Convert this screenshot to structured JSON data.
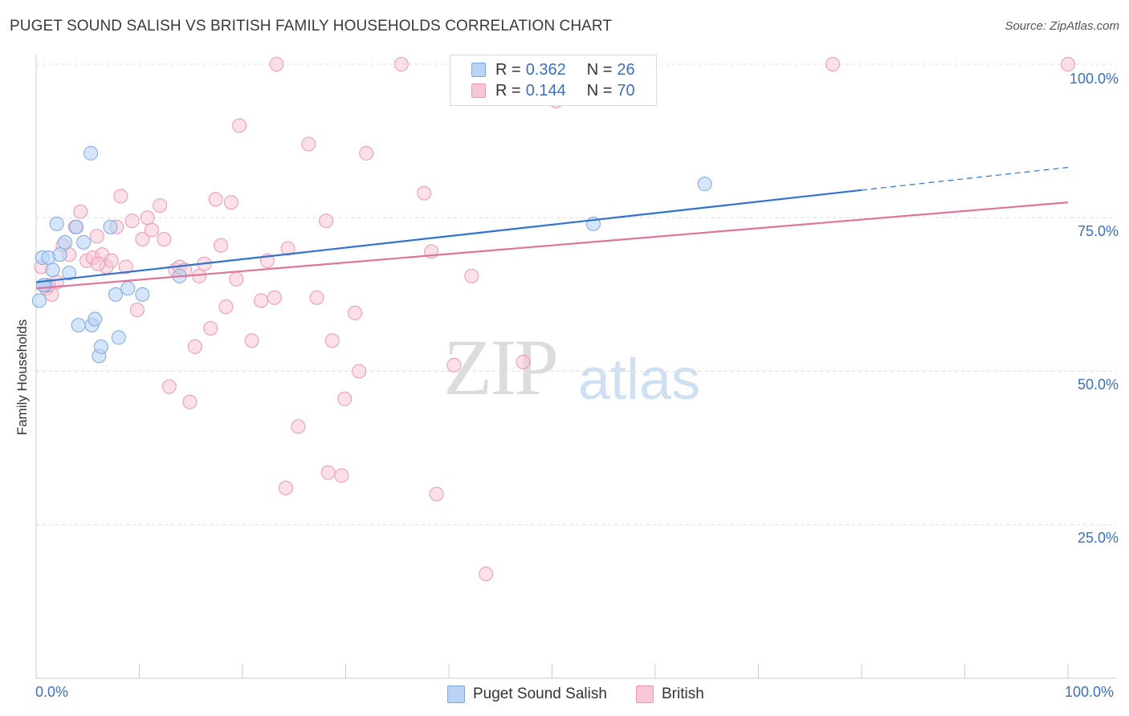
{
  "title": "PUGET SOUND SALISH VS BRITISH FAMILY HOUSEHOLDS CORRELATION CHART",
  "source": "Source: ZipAtlas.com",
  "watermark": {
    "part1": "ZIP",
    "part2": "atlas"
  },
  "legend_top": {
    "rows": [
      {
        "r_label": "R = ",
        "r_value": "0.362",
        "n_label": "N = ",
        "n_value": "26"
      },
      {
        "r_label": "R = ",
        "r_value": "0.144",
        "n_label": "N = ",
        "n_value": "70"
      }
    ]
  },
  "chart_data": {
    "type": "scatter",
    "title": "PUGET SOUND SALISH VS BRITISH FAMILY HOUSEHOLDS CORRELATION CHART",
    "xlabel": "",
    "ylabel": "Family Households",
    "xlim": [
      0,
      100
    ],
    "ylim": [
      0,
      100
    ],
    "x_tick_labels": [
      "0.0%",
      "100.0%"
    ],
    "y_ticks": [
      {
        "value": 100,
        "label": "100.0%"
      },
      {
        "value": 75,
        "label": "75.0%"
      },
      {
        "value": 50,
        "label": "50.0%"
      },
      {
        "value": 25,
        "label": "25.0%"
      }
    ],
    "grid": true,
    "colors": {
      "blue_fill": "#b9d3f6",
      "blue_stroke": "#7ea9e1",
      "blue_line": "#2f72d0",
      "pink_fill": "#f8c7d6",
      "pink_stroke": "#e89ab2",
      "pink_line": "#e0749a",
      "accent_text": "#3a6fc4"
    },
    "series": [
      {
        "name": "Puget Sound Salish",
        "R": 0.362,
        "N": 26,
        "trend": {
          "x0": 0,
          "y0": 64.5,
          "x1": 80,
          "y1": 79.5,
          "dash_to_x": 100,
          "dash_to_y": 83.2
        },
        "points": [
          [
            0.3,
            61.5
          ],
          [
            0.6,
            68.5
          ],
          [
            0.9,
            64
          ],
          [
            1.2,
            68.5
          ],
          [
            1.6,
            66.5
          ],
          [
            2.0,
            74
          ],
          [
            2.3,
            69
          ],
          [
            2.8,
            71
          ],
          [
            3.2,
            66
          ],
          [
            3.9,
            73.5
          ],
          [
            4.1,
            57.5
          ],
          [
            4.6,
            71
          ],
          [
            5.3,
            85.5
          ],
          [
            5.4,
            57.5
          ],
          [
            5.7,
            58.5
          ],
          [
            6.1,
            52.5
          ],
          [
            6.3,
            54
          ],
          [
            7.2,
            73.5
          ],
          [
            7.7,
            62.5
          ],
          [
            8.0,
            55.5
          ],
          [
            8.9,
            63.5
          ],
          [
            10.3,
            62.5
          ],
          [
            13.9,
            65.5
          ],
          [
            0.7,
            64
          ],
          [
            54.0,
            74
          ],
          [
            64.8,
            80.5
          ]
        ]
      },
      {
        "name": "British",
        "R": 0.144,
        "N": 70,
        "trend": {
          "x0": 0,
          "y0": 63.5,
          "x1": 100,
          "y1": 77.5
        },
        "points": [
          [
            0.5,
            67
          ],
          [
            1.0,
            63.5
          ],
          [
            1.5,
            62.5
          ],
          [
            2.0,
            64.5
          ],
          [
            2.6,
            70.5
          ],
          [
            3.2,
            69
          ],
          [
            3.8,
            73.5
          ],
          [
            4.3,
            76
          ],
          [
            4.9,
            68
          ],
          [
            5.5,
            68.5
          ],
          [
            5.9,
            72
          ],
          [
            6.4,
            69
          ],
          [
            6.8,
            67
          ],
          [
            7.3,
            68
          ],
          [
            7.8,
            73.5
          ],
          [
            8.2,
            78.5
          ],
          [
            8.7,
            67
          ],
          [
            9.3,
            74.5
          ],
          [
            9.8,
            60
          ],
          [
            10.3,
            71.5
          ],
          [
            10.8,
            75
          ],
          [
            11.2,
            73
          ],
          [
            12.0,
            77
          ],
          [
            12.4,
            71.5
          ],
          [
            12.9,
            47.5
          ],
          [
            13.5,
            66.5
          ],
          [
            13.9,
            67
          ],
          [
            14.4,
            66.5
          ],
          [
            14.9,
            45
          ],
          [
            15.4,
            54
          ],
          [
            15.8,
            65.5
          ],
          [
            16.3,
            67.5
          ],
          [
            16.9,
            57
          ],
          [
            17.4,
            78
          ],
          [
            17.9,
            70.5
          ],
          [
            18.4,
            60.5
          ],
          [
            18.9,
            77.5
          ],
          [
            19.4,
            65
          ],
          [
            19.7,
            90
          ],
          [
            20.9,
            55
          ],
          [
            21.8,
            61.5
          ],
          [
            22.4,
            68
          ],
          [
            23.1,
            62
          ],
          [
            23.3,
            100
          ],
          [
            24.2,
            31
          ],
          [
            24.4,
            70
          ],
          [
            25.4,
            41
          ],
          [
            26.4,
            87
          ],
          [
            27.2,
            62
          ],
          [
            28.1,
            74.5
          ],
          [
            28.3,
            33.5
          ],
          [
            28.7,
            55
          ],
          [
            29.6,
            33
          ],
          [
            29.9,
            45.5
          ],
          [
            30.9,
            59.5
          ],
          [
            31.3,
            50
          ],
          [
            32.0,
            85.5
          ],
          [
            35.4,
            100
          ],
          [
            37.6,
            79
          ],
          [
            38.3,
            69.5
          ],
          [
            38.8,
            30
          ],
          [
            40.5,
            51
          ],
          [
            42.2,
            65.5
          ],
          [
            43.6,
            17
          ],
          [
            47.2,
            51.5
          ],
          [
            50.4,
            94
          ],
          [
            77.2,
            100
          ],
          [
            100.0,
            100
          ],
          [
            1.2,
            64
          ],
          [
            6.0,
            67.5
          ]
        ]
      }
    ]
  },
  "bottom_legend": [
    {
      "label": "Puget Sound Salish"
    },
    {
      "label": "British"
    }
  ]
}
